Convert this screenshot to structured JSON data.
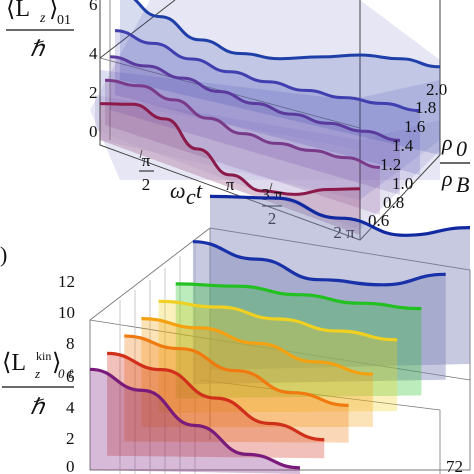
{
  "chart_data": [
    {
      "type": "line",
      "panel": "top",
      "ylabel_main": "⟨L",
      "ylabel_sub": "z",
      "ylabel_tail": "⟩",
      "ylabel_index": "01",
      "ylabel_den": "ℏ",
      "yticks": [
        "0",
        "2",
        "4",
        "6"
      ],
      "xlabel_omega": "ω",
      "xlabel_c": "c",
      "xlabel_t": "t",
      "xticks": [
        {
          "num": "π",
          "den": "2"
        },
        {
          "num": "",
          "den": "",
          "text": "π"
        },
        {
          "num": "3 π",
          "den": "2"
        },
        {
          "num": "",
          "den": "",
          "text": "2 π"
        }
      ],
      "zlabel_num_rho": "ρ",
      "zlabel_num_sub": "0",
      "zlabel_den_rho": "ρ",
      "zlabel_den_sub": "B",
      "zticks": [
        "0.6",
        "0.8",
        "1.0",
        "1.2",
        "1.4",
        "1.6",
        "1.8",
        "2.0"
      ],
      "series": [
        {
          "rho0_over_rhoB": 0.6,
          "values": [
            2.6,
            3.4,
            3.2,
            1.9,
            0.9,
            0.6,
            1.2,
            2.4,
            3.3
          ]
        },
        {
          "rho0_over_rhoB": 1.0,
          "values": [
            3.2,
            3.6,
            3.4,
            2.9,
            2.6,
            2.7,
            3.0,
            3.3,
            3.4
          ]
        },
        {
          "rho0_over_rhoB": 1.4,
          "values": [
            3.8,
            3.9,
            3.8,
            3.6,
            3.5,
            3.5,
            3.6,
            3.8,
            3.9
          ]
        },
        {
          "rho0_over_rhoB": 1.8,
          "values": [
            4.6,
            4.4,
            4.0,
            3.8,
            3.8,
            3.9,
            4.1,
            4.4,
            4.6
          ]
        },
        {
          "rho0_over_rhoB": 2.2,
          "values": [
            6.2,
            5.2,
            4.2,
            3.9,
            4.2,
            5.0,
            5.8,
            6.2,
            6.3
          ]
        }
      ],
      "colors": [
        "#8b1a4a",
        "#7a3a8a",
        "#5b3a9e",
        "#3f3fb0",
        "#1f3fa8"
      ]
    },
    {
      "type": "line",
      "panel": "bottom",
      "panel_tag": ")",
      "ylabel_main": "⟨L",
      "ylabel_sub": "z",
      "ylabel_sup": "kin",
      "ylabel_tail": "⟩",
      "ylabel_index": "0 ℓ",
      "ylabel_den": "ℏ",
      "yticks": [
        "0",
        "2",
        "4",
        "6",
        "8",
        "10",
        "12"
      ],
      "corner_label": "72",
      "series": [
        {
          "name": "",
          "values": [
            6.5,
            5.2,
            3.0,
            1.2,
            0.4
          ]
        },
        {
          "name": "",
          "values": [
            6.6,
            5.6,
            3.8,
            2.2,
            1.2
          ]
        },
        {
          "name": "",
          "values": [
            6.8,
            6.0,
            4.6,
            3.2,
            2.4
          ]
        },
        {
          "name": "",
          "values": [
            7.0,
            6.4,
            5.4,
            4.2,
            3.4
          ]
        },
        {
          "name": "",
          "values": [
            7.2,
            6.8,
            6.0,
            5.2,
            4.6
          ]
        },
        {
          "name": "",
          "values": [
            7.4,
            7.2,
            6.6,
            6.0,
            5.6
          ]
        },
        {
          "name": "",
          "values": [
            9.2,
            8.0,
            6.6,
            6.2,
            6.8
          ]
        },
        {
          "name": "",
          "values": [
            11.2,
            11.0,
            9.6,
            8.4,
            8.8
          ]
        }
      ],
      "colors": [
        "#7a1a7a",
        "#d0301a",
        "#f07a10",
        "#f4a010",
        "#f0d020",
        "#22c020",
        "#1830a8",
        "#1028a0"
      ]
    }
  ]
}
